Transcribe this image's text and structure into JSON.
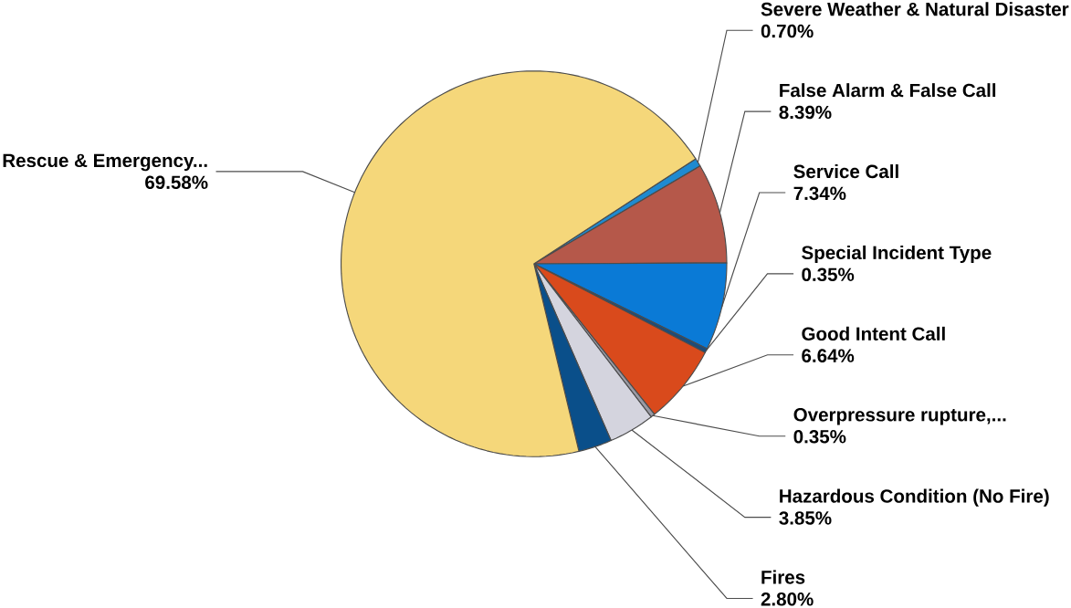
{
  "chart_data": {
    "type": "pie",
    "categories": [
      "Severe Weather & Natural Disaster",
      "False Alarm & False Call",
      "Service Call",
      "Special Incident Type",
      "Good Intent Call",
      "Overpressure rupture,...",
      "Hazardous Condition (No Fire)",
      "Fires",
      "Rescue & Emergency..."
    ],
    "values": [
      0.7,
      8.39,
      7.34,
      0.35,
      6.64,
      0.35,
      3.85,
      2.8,
      69.58
    ],
    "value_labels": [
      "0.70%",
      "8.39%",
      "7.34%",
      "0.35%",
      "6.64%",
      "0.35%",
      "3.85%",
      "2.80%",
      "69.58%"
    ],
    "colors": [
      "#1f8ad0",
      "#b5584a",
      "#0a7ad6",
      "#1c4c7a",
      "#d94a1c",
      "#9a9aa4",
      "#d4d4de",
      "#0a4f8a",
      "#f5d77a"
    ]
  }
}
